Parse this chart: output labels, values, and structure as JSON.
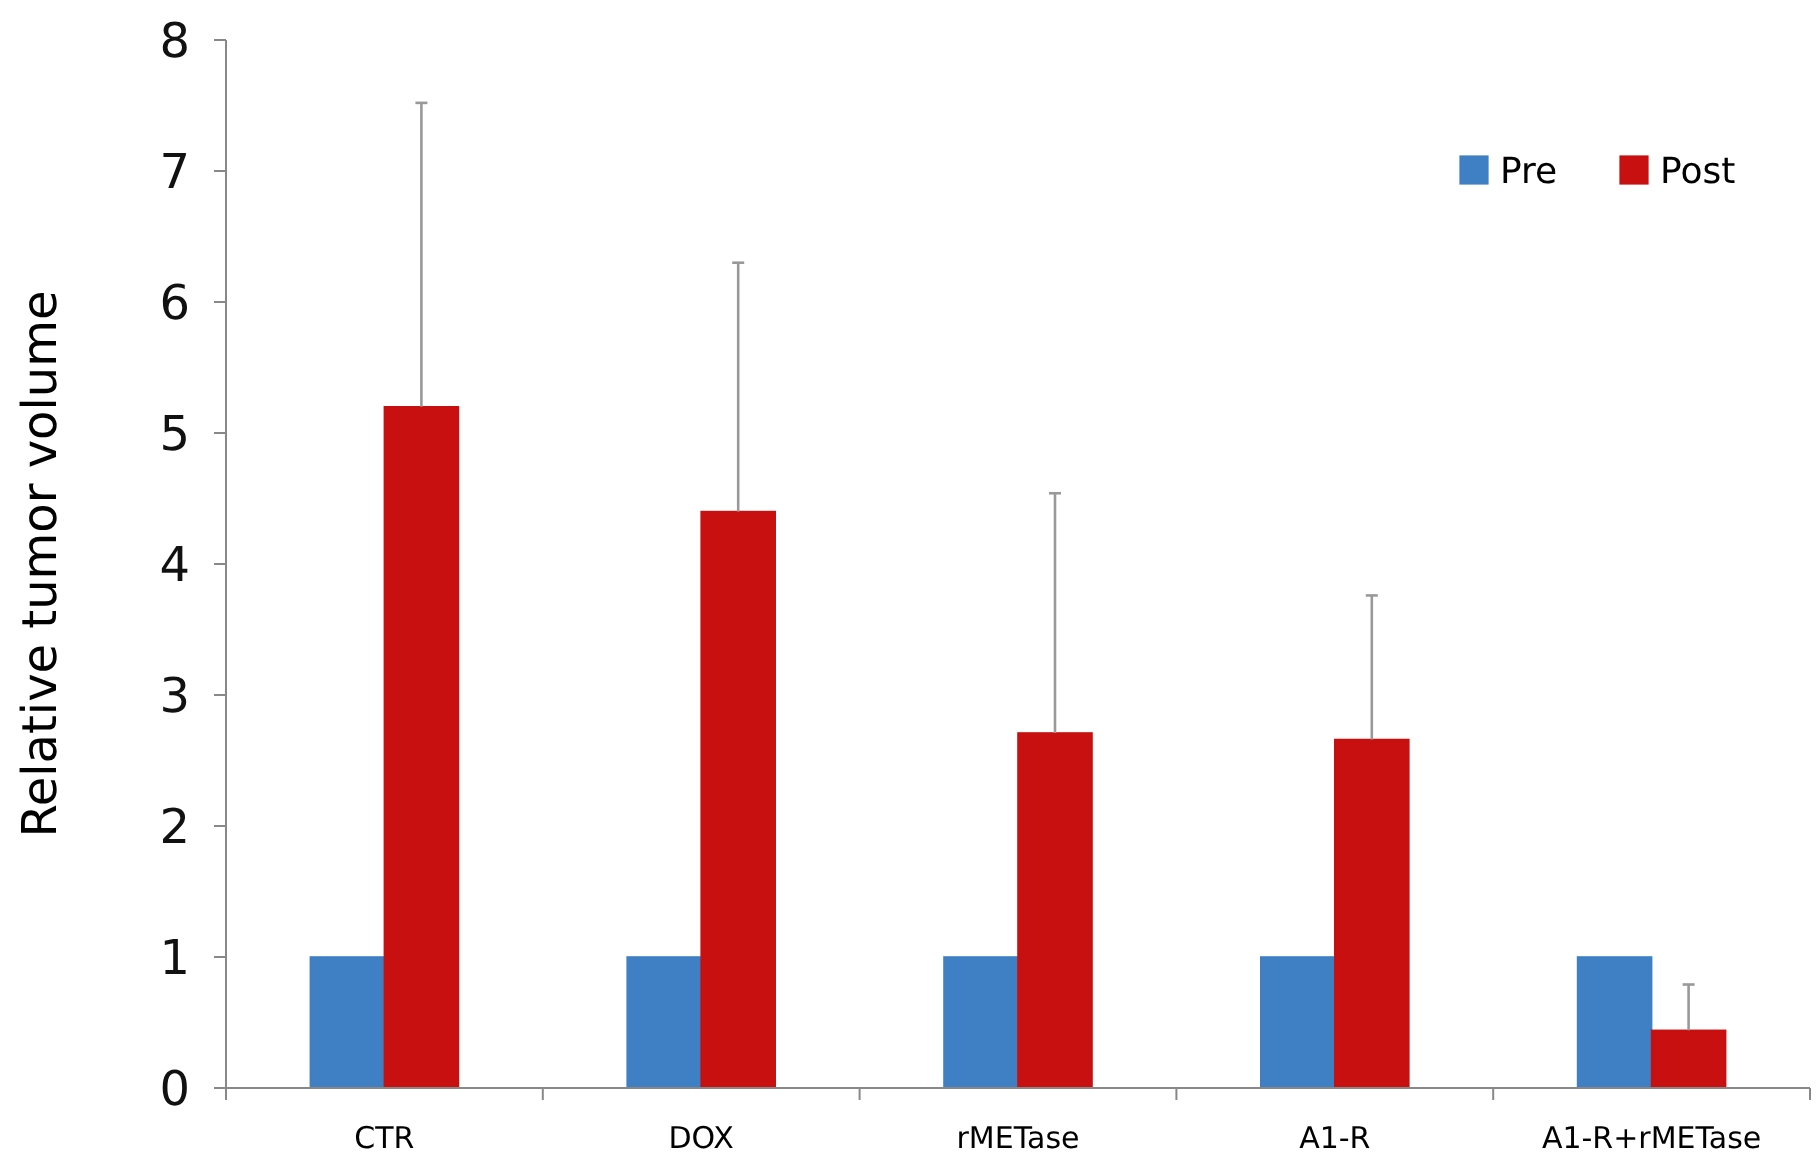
{
  "chart_data": {
    "type": "bar",
    "ylabel": "Relative tumor volume",
    "categories": [
      "CTR",
      "DOX",
      "rMETase",
      "A1-R",
      "A1-R+rMETase"
    ],
    "series": [
      {
        "name": "Pre",
        "color": "#3f7fc4",
        "values": [
          1,
          1,
          1,
          1,
          1
        ]
      },
      {
        "name": "Post",
        "color": "#c81010",
        "values": [
          5.2,
          4.4,
          2.71,
          2.66,
          0.44
        ],
        "errors": [
          [
            5.2,
            7.52
          ],
          [
            4.4,
            6.3
          ],
          [
            2.71,
            4.54
          ],
          [
            2.66,
            3.76
          ],
          [
            0.44,
            0.79
          ]
        ]
      }
    ],
    "ylim": [
      0,
      8
    ],
    "yticks": [
      0,
      1,
      2,
      3,
      4,
      5,
      6,
      7,
      8
    ],
    "grid": false,
    "legend": "top right"
  }
}
